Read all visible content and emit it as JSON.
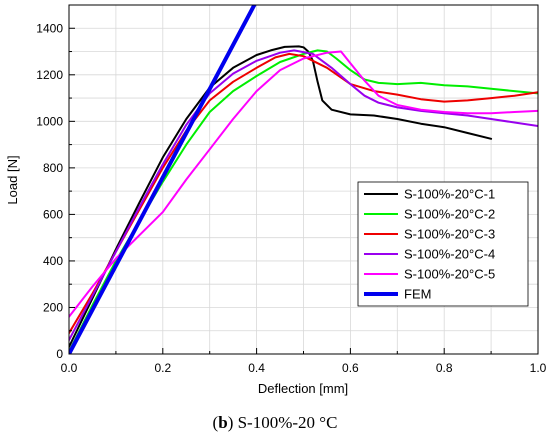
{
  "caption": {
    "open": "(",
    "letter": "b",
    "rest": ") S-100%-20 °C"
  },
  "chart_data": {
    "type": "line",
    "xlabel": "Deflection [mm]",
    "ylabel": "Load [N]",
    "xlim": [
      0.0,
      1.0
    ],
    "ylim": [
      0,
      1500
    ],
    "xticks": [
      0.0,
      0.2,
      0.4,
      0.6,
      0.8,
      1.0
    ],
    "xtick_labels": [
      "0.0",
      "0.2",
      "0.4",
      "0.6",
      "0.8",
      "1.0"
    ],
    "yticks": [
      0,
      200,
      400,
      600,
      800,
      1000,
      1200,
      1400
    ],
    "ytick_labels": [
      "0",
      "200",
      "400",
      "600",
      "800",
      "1000",
      "1200",
      "1400"
    ],
    "grid": true,
    "legend_position": "right",
    "series": [
      {
        "name": "S-100%-20°C-1",
        "color": "#000000",
        "width": 2,
        "x": [
          0,
          0.05,
          0.1,
          0.15,
          0.2,
          0.25,
          0.3,
          0.35,
          0.4,
          0.43,
          0.46,
          0.49,
          0.5,
          0.51,
          0.52,
          0.53,
          0.54,
          0.56,
          0.6,
          0.65,
          0.7,
          0.75,
          0.8,
          0.85,
          0.9
        ],
        "y": [
          30,
          240,
          450,
          650,
          845,
          1010,
          1145,
          1230,
          1285,
          1305,
          1320,
          1322,
          1318,
          1300,
          1260,
          1170,
          1090,
          1050,
          1030,
          1025,
          1010,
          990,
          975,
          950,
          925
        ]
      },
      {
        "name": "S-100%-20°C-2",
        "color": "#00ee00",
        "width": 2,
        "x": [
          0,
          0.05,
          0.1,
          0.15,
          0.2,
          0.25,
          0.3,
          0.35,
          0.4,
          0.45,
          0.5,
          0.53,
          0.55,
          0.57,
          0.6,
          0.63,
          0.66,
          0.7,
          0.75,
          0.8,
          0.85,
          0.9,
          0.95,
          1.0
        ],
        "y": [
          10,
          210,
          400,
          570,
          740,
          900,
          1040,
          1130,
          1195,
          1255,
          1290,
          1305,
          1300,
          1270,
          1220,
          1180,
          1165,
          1160,
          1165,
          1155,
          1150,
          1140,
          1130,
          1120
        ]
      },
      {
        "name": "S-100%-20°C-3",
        "color": "#ee0000",
        "width": 2,
        "x": [
          0,
          0.05,
          0.1,
          0.15,
          0.2,
          0.25,
          0.3,
          0.35,
          0.4,
          0.44,
          0.47,
          0.5,
          0.55,
          0.6,
          0.65,
          0.7,
          0.75,
          0.8,
          0.85,
          0.9,
          0.95,
          1.0
        ],
        "y": [
          90,
          260,
          440,
          620,
          800,
          960,
          1090,
          1170,
          1230,
          1275,
          1290,
          1280,
          1230,
          1160,
          1130,
          1115,
          1095,
          1085,
          1090,
          1100,
          1110,
          1125
        ]
      },
      {
        "name": "S-100%-20°C-4",
        "color": "#9900ee",
        "width": 2,
        "x": [
          0,
          0.05,
          0.1,
          0.15,
          0.2,
          0.25,
          0.3,
          0.35,
          0.4,
          0.45,
          0.48,
          0.52,
          0.56,
          0.6,
          0.63,
          0.66,
          0.7,
          0.75,
          0.8,
          0.85,
          0.9,
          0.95,
          1.0
        ],
        "y": [
          60,
          250,
          440,
          630,
          815,
          985,
          1120,
          1205,
          1260,
          1295,
          1305,
          1290,
          1230,
          1160,
          1110,
          1080,
          1060,
          1045,
          1035,
          1025,
          1010,
          995,
          980
        ]
      },
      {
        "name": "S-100%-20°C-5",
        "color": "#ff00ff",
        "width": 2,
        "x": [
          0,
          0.05,
          0.1,
          0.15,
          0.2,
          0.25,
          0.3,
          0.35,
          0.4,
          0.45,
          0.5,
          0.55,
          0.58,
          0.6,
          0.63,
          0.66,
          0.7,
          0.75,
          0.8,
          0.85,
          0.9,
          0.95,
          1.0
        ],
        "y": [
          160,
          290,
          410,
          510,
          610,
          750,
          880,
          1010,
          1130,
          1220,
          1270,
          1295,
          1300,
          1250,
          1175,
          1110,
          1070,
          1050,
          1040,
          1035,
          1035,
          1040,
          1045
        ]
      },
      {
        "name": "FEM",
        "color": "#0000ee",
        "width": 4,
        "x": [
          0,
          0.395
        ],
        "y": [
          0,
          1500
        ]
      }
    ]
  }
}
